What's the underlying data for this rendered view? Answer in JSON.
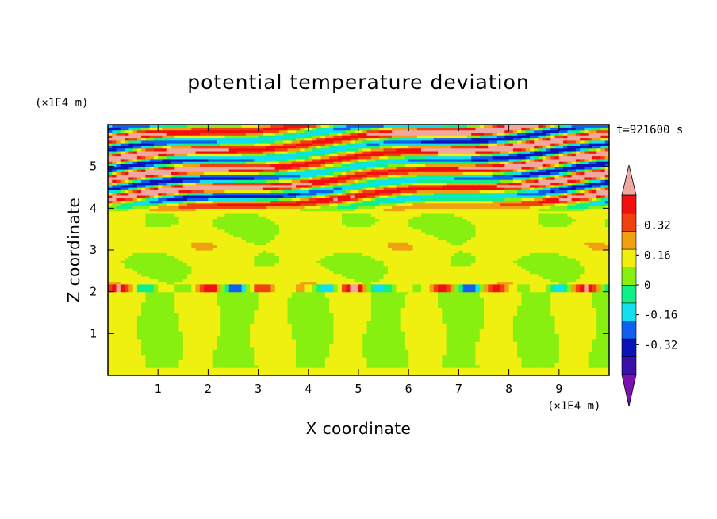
{
  "chart_data": {
    "type": "heatmap",
    "title": "potential temperature deviation",
    "xlabel": "X coordinate",
    "ylabel": "Z coordinate",
    "x_unit": "(×1E4 m)",
    "y_unit": "(×1E4 m)",
    "time_label": "t=921600 s",
    "xlim": [
      0,
      10
    ],
    "ylim": [
      0,
      6
    ],
    "x_ticks": [
      "1",
      "2",
      "3",
      "4",
      "5",
      "6",
      "7",
      "8",
      "9"
    ],
    "y_ticks": [
      "1",
      "2",
      "3",
      "4",
      "5"
    ],
    "colorbar": {
      "min": -0.48,
      "max": 0.48,
      "step": 0.08,
      "extend": "both",
      "tick_labels": [
        "0.32",
        "0.16",
        "0",
        "-0.16",
        "-0.32"
      ],
      "tick_values": [
        0.32,
        0.16,
        0,
        -0.16,
        -0.32
      ],
      "colors": [
        "#7a10b0",
        "#3a10a8",
        "#0a14b8",
        "#1060f0",
        "#10e0f0",
        "#10f088",
        "#88f010",
        "#f0f010",
        "#f0a010",
        "#f04010",
        "#f01010",
        "#f0a8a0"
      ]
    }
  }
}
